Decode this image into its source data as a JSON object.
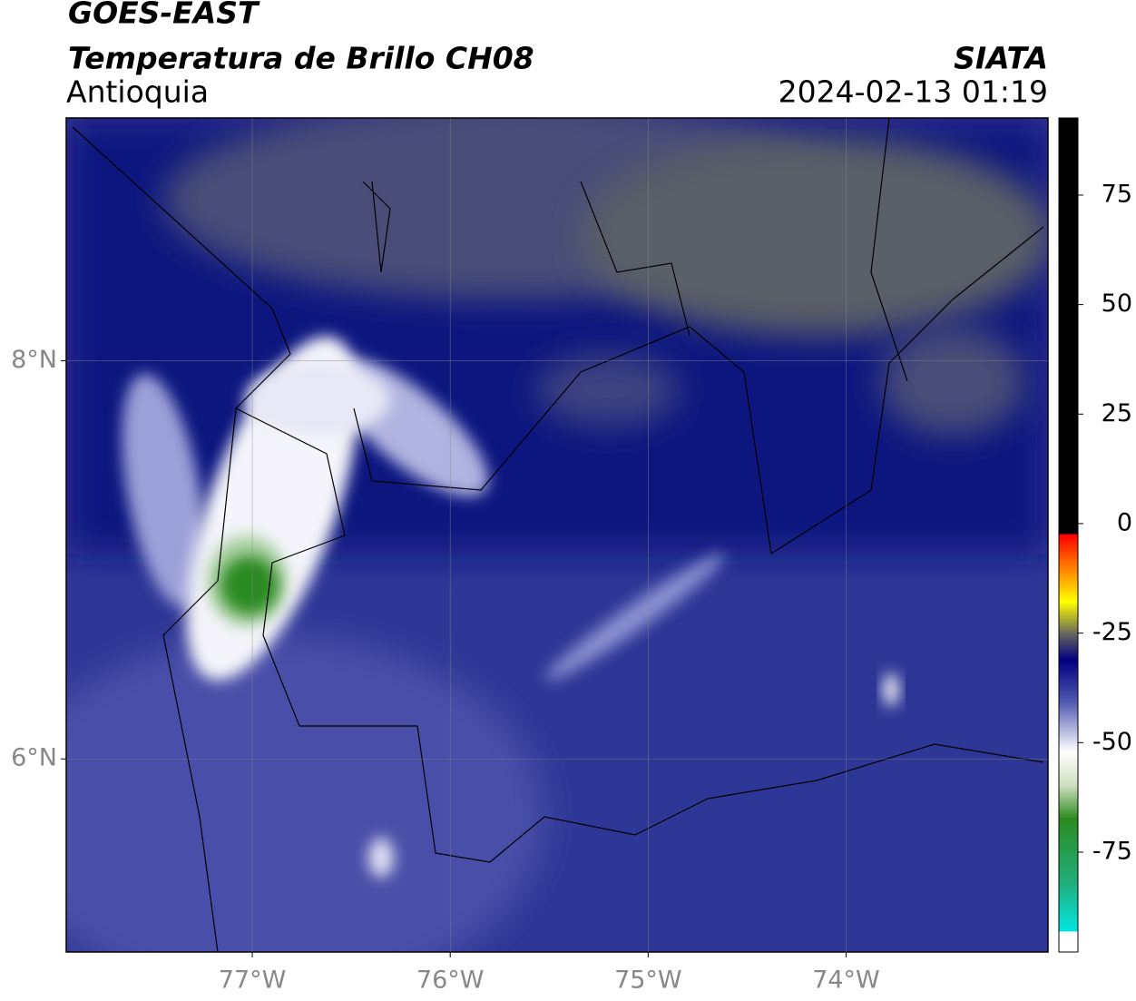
{
  "header": {
    "title": "GOES-EAST",
    "subtitle": "Temperatura de Brillo CH08",
    "region": "Antioquia",
    "agency": "SIATA",
    "timestamp": "2024-02-13 01:19"
  },
  "map": {
    "lonlim": [
      -77.94,
      -72.98
    ],
    "latlim": [
      5.03,
      9.22
    ],
    "lonticks": [
      {
        "value": -77,
        "label": "77°W"
      },
      {
        "value": -76,
        "label": "76°W"
      },
      {
        "value": -75,
        "label": "75°W"
      },
      {
        "value": -74,
        "label": "74°W"
      }
    ],
    "latticks": [
      {
        "value": 8,
        "label": "8°N"
      },
      {
        "value": 6,
        "label": "6°N"
      }
    ]
  },
  "colorbar": {
    "lim": [
      -97.8,
      92.6
    ],
    "ticks": [
      75,
      50,
      25,
      0,
      -25,
      -50,
      -75
    ]
  }
}
